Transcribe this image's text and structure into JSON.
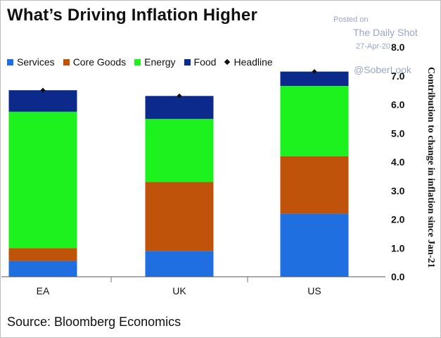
{
  "title": "What’s Driving Inflation Higher",
  "watermark": {
    "posted": "Posted on",
    "source_name": "The Daily Shot",
    "date": "27-Apr-20",
    "handle": "@SoberLook"
  },
  "source": "Source: Bloomberg Economics",
  "colors": {
    "Services": "#1f6fe0",
    "Core Goods": "#c0530a",
    "Energy": "#1ef21e",
    "Food": "#0c2a8c",
    "Headline": "#111111"
  },
  "chart_data": {
    "type": "bar",
    "stacked": true,
    "categories": [
      "EA",
      "UK",
      "US"
    ],
    "series": [
      {
        "name": "Services",
        "values": [
          0.55,
          0.9,
          2.2
        ]
      },
      {
        "name": "Core Goods",
        "values": [
          0.45,
          2.4,
          2.0
        ]
      },
      {
        "name": "Energy",
        "values": [
          4.75,
          2.2,
          2.45
        ]
      },
      {
        "name": "Food",
        "values": [
          0.75,
          0.8,
          0.5
        ]
      }
    ],
    "headline": {
      "name": "Headline",
      "values": [
        6.5,
        6.3,
        7.15
      ]
    },
    "ylabel": "Contribution to change in inflation since Jan-21",
    "ylim": [
      0,
      8
    ],
    "yticks": [
      "0.0",
      "1.0",
      "2.0",
      "3.0",
      "4.0",
      "5.0",
      "6.0",
      "7.0",
      "8.0"
    ],
    "y_axis_position": "right",
    "legend_position": "top-left",
    "grid": false
  }
}
